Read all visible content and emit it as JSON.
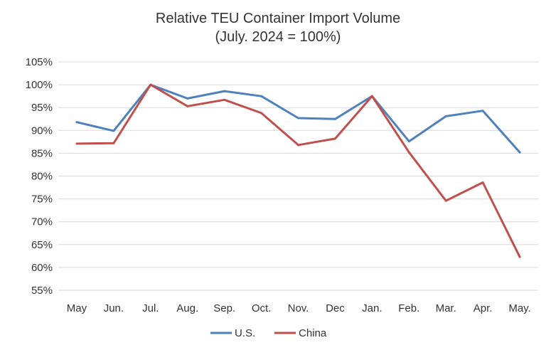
{
  "chart_data": {
    "type": "line",
    "title": "Relative TEU Container Import  Volume",
    "subtitle": "(July. 2024 = 100%)",
    "categories": [
      "May",
      "Jun.",
      "Jul.",
      "Aug.",
      "Sep.",
      "Oct.",
      "Nov.",
      "Dec",
      "Jan.",
      "Feb.",
      "Mar.",
      "Apr.",
      "May."
    ],
    "series": [
      {
        "name": "U.S.",
        "color": "#4F81BD",
        "values": [
          91.8,
          89.9,
          100.0,
          97.0,
          98.6,
          97.5,
          92.7,
          92.5,
          97.5,
          87.6,
          93.1,
          94.3,
          85.2
        ]
      },
      {
        "name": "China",
        "color": "#C0504D",
        "values": [
          87.1,
          87.2,
          100.0,
          95.3,
          96.7,
          93.8,
          86.8,
          88.2,
          97.5,
          85.2,
          74.6,
          78.6,
          62.3
        ]
      }
    ],
    "ylim": [
      55,
      105
    ],
    "yticks": [
      55,
      60,
      65,
      70,
      75,
      80,
      85,
      90,
      95,
      100,
      105
    ],
    "ytick_suffix": "%",
    "xlabel": "",
    "ylabel": "",
    "grid": true,
    "legend_position": "bottom-center"
  }
}
